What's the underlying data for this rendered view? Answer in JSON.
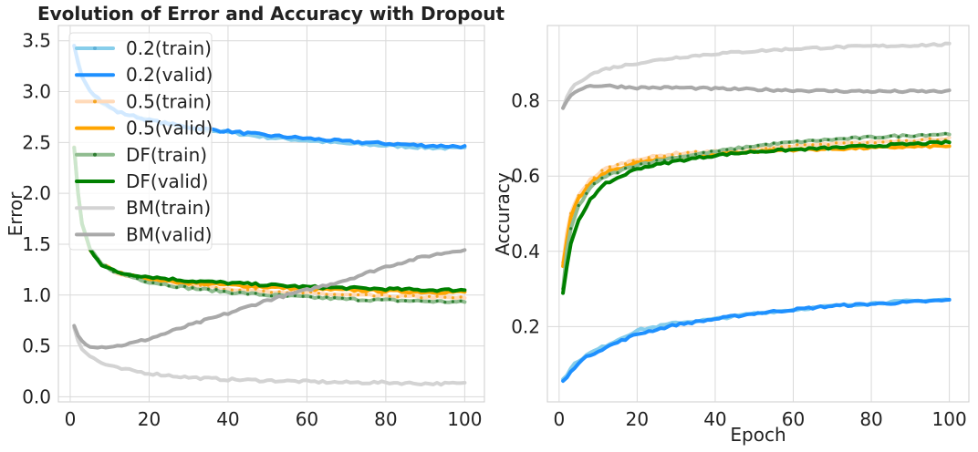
{
  "chart_data": [
    {
      "type": "line",
      "title": "Evolution of Error and Accuracy with Dropout",
      "xlabel": "",
      "ylabel": "Error",
      "xlim": [
        -3,
        105
      ],
      "ylim": [
        -0.05,
        3.65
      ],
      "xticks": [
        0,
        20,
        40,
        60,
        80,
        100
      ],
      "xtick_labels": [
        "0",
        "20",
        "40",
        "60",
        "80",
        "100"
      ],
      "yticks": [
        0.0,
        0.5,
        1.0,
        1.5,
        2.0,
        2.5,
        3.0,
        3.5
      ],
      "ytick_labels": [
        "0.0",
        "0.5",
        "1.0",
        "1.5",
        "2.0",
        "2.5",
        "3.0",
        "3.5"
      ],
      "grid": true,
      "legend_position": "top-left",
      "series": [
        {
          "name": "0.2(train)",
          "color": "#87ceeb",
          "x": [
            1,
            2,
            3,
            5,
            8,
            12,
            20,
            30,
            40,
            50,
            60,
            70,
            80,
            90,
            100
          ],
          "y": [
            3.45,
            3.3,
            3.15,
            3.0,
            2.88,
            2.8,
            2.72,
            2.64,
            2.6,
            2.55,
            2.52,
            2.49,
            2.47,
            2.45,
            2.44
          ]
        },
        {
          "name": "0.2(valid)",
          "color": "#1e90ff",
          "x": [
            1,
            2,
            3,
            5,
            8,
            12,
            20,
            30,
            40,
            50,
            60,
            70,
            80,
            90,
            100
          ],
          "y": [
            3.45,
            3.28,
            3.15,
            3.02,
            2.9,
            2.8,
            2.72,
            2.65,
            2.61,
            2.57,
            2.54,
            2.51,
            2.49,
            2.47,
            2.46
          ]
        },
        {
          "name": "0.5(train)",
          "color": "#ffdab9",
          "x": [
            1,
            2,
            3,
            5,
            8,
            12,
            20,
            30,
            40,
            50,
            60,
            70,
            80,
            90,
            100
          ],
          "y": [
            2.45,
            2.0,
            1.7,
            1.45,
            1.3,
            1.22,
            1.15,
            1.1,
            1.06,
            1.04,
            1.02,
            1.0,
            0.99,
            0.98,
            0.97
          ]
        },
        {
          "name": "0.5(valid)",
          "color": "#ffa500",
          "x": [
            1,
            2,
            3,
            5,
            8,
            12,
            20,
            30,
            40,
            50,
            60,
            70,
            80,
            90,
            100
          ],
          "y": [
            2.45,
            2.0,
            1.7,
            1.45,
            1.3,
            1.22,
            1.15,
            1.12,
            1.1,
            1.08,
            1.06,
            1.05,
            1.04,
            1.03,
            1.03
          ]
        },
        {
          "name": "DF(train)",
          "color": "#8fbc8f",
          "x": [
            1,
            2,
            3,
            5,
            8,
            12,
            20,
            30,
            40,
            50,
            60,
            70,
            80,
            90,
            100
          ],
          "y": [
            2.45,
            2.0,
            1.7,
            1.45,
            1.3,
            1.22,
            1.13,
            1.07,
            1.03,
            1.0,
            0.98,
            0.96,
            0.95,
            0.94,
            0.93
          ]
        },
        {
          "name": "DF(valid)",
          "color": "#008000",
          "x": [
            1,
            2,
            3,
            5,
            8,
            12,
            20,
            30,
            40,
            50,
            60,
            70,
            80,
            90,
            100
          ],
          "y": [
            2.45,
            2.0,
            1.7,
            1.45,
            1.3,
            1.22,
            1.18,
            1.14,
            1.12,
            1.1,
            1.08,
            1.07,
            1.06,
            1.05,
            1.05
          ]
        },
        {
          "name": "BM(train)",
          "color": "#d3d3d3",
          "x": [
            1,
            2,
            3,
            5,
            8,
            12,
            20,
            30,
            40,
            50,
            60,
            70,
            80,
            90,
            100
          ],
          "y": [
            0.68,
            0.55,
            0.47,
            0.4,
            0.33,
            0.28,
            0.23,
            0.19,
            0.17,
            0.16,
            0.15,
            0.14,
            0.14,
            0.13,
            0.13
          ]
        },
        {
          "name": "BM(valid)",
          "color": "#a9a9a9",
          "x": [
            1,
            2,
            3,
            5,
            8,
            12,
            16,
            20,
            30,
            40,
            50,
            60,
            70,
            80,
            90,
            100
          ],
          "y": [
            0.7,
            0.6,
            0.55,
            0.5,
            0.49,
            0.5,
            0.53,
            0.57,
            0.7,
            0.82,
            0.95,
            1.05,
            1.15,
            1.28,
            1.38,
            1.45
          ]
        }
      ]
    },
    {
      "type": "line",
      "title": "",
      "xlabel": "Epoch",
      "ylabel": "Accuracy",
      "xlim": [
        -3,
        105
      ],
      "ylim": [
        0.0,
        1.0
      ],
      "xticks": [
        0,
        20,
        40,
        60,
        80,
        100
      ],
      "xtick_labels": [
        "0",
        "20",
        "40",
        "60",
        "80",
        "100"
      ],
      "yticks": [
        0.2,
        0.4,
        0.6,
        0.8
      ],
      "ytick_labels": [
        "0.2",
        "0.4",
        "0.6",
        "0.8"
      ],
      "grid": true,
      "series": [
        {
          "color": "#87ceeb",
          "x": [
            1,
            2,
            3,
            5,
            8,
            12,
            20,
            30,
            40,
            50,
            60,
            70,
            80,
            90,
            100
          ],
          "y": [
            0.06,
            0.07,
            0.09,
            0.11,
            0.13,
            0.15,
            0.19,
            0.21,
            0.22,
            0.235,
            0.245,
            0.255,
            0.262,
            0.268,
            0.272
          ]
        },
        {
          "color": "#1e90ff",
          "x": [
            1,
            2,
            3,
            5,
            8,
            12,
            20,
            30,
            40,
            50,
            60,
            70,
            80,
            90,
            100
          ],
          "y": [
            0.055,
            0.065,
            0.08,
            0.105,
            0.125,
            0.145,
            0.18,
            0.205,
            0.22,
            0.235,
            0.245,
            0.255,
            0.26,
            0.265,
            0.27
          ]
        },
        {
          "color": "#ffdab9",
          "x": [
            1,
            2,
            3,
            5,
            8,
            12,
            20,
            30,
            40,
            50,
            60,
            70,
            80,
            90,
            100
          ],
          "y": [
            0.37,
            0.45,
            0.5,
            0.55,
            0.59,
            0.62,
            0.645,
            0.66,
            0.665,
            0.675,
            0.68,
            0.685,
            0.69,
            0.695,
            0.7
          ]
        },
        {
          "color": "#ffa500",
          "x": [
            1,
            2,
            3,
            5,
            8,
            12,
            20,
            30,
            40,
            50,
            60,
            70,
            80,
            90,
            100
          ],
          "y": [
            0.36,
            0.43,
            0.49,
            0.54,
            0.58,
            0.61,
            0.635,
            0.65,
            0.66,
            0.665,
            0.67,
            0.672,
            0.675,
            0.678,
            0.68
          ]
        },
        {
          "color": "#8fbc8f",
          "x": [
            1,
            2,
            3,
            5,
            8,
            12,
            20,
            30,
            40,
            50,
            60,
            70,
            80,
            90,
            100
          ],
          "y": [
            0.3,
            0.4,
            0.46,
            0.52,
            0.57,
            0.6,
            0.63,
            0.65,
            0.665,
            0.68,
            0.69,
            0.697,
            0.703,
            0.708,
            0.712
          ]
        },
        {
          "color": "#008000",
          "x": [
            1,
            2,
            3,
            5,
            8,
            12,
            20,
            30,
            40,
            50,
            60,
            70,
            80,
            90,
            100
          ],
          "y": [
            0.29,
            0.36,
            0.42,
            0.48,
            0.54,
            0.58,
            0.62,
            0.64,
            0.655,
            0.665,
            0.67,
            0.675,
            0.68,
            0.685,
            0.69
          ]
        },
        {
          "color": "#d3d3d3",
          "x": [
            1,
            2,
            3,
            5,
            8,
            12,
            20,
            30,
            40,
            50,
            60,
            70,
            80,
            90,
            100
          ],
          "y": [
            0.78,
            0.81,
            0.83,
            0.85,
            0.87,
            0.885,
            0.9,
            0.915,
            0.925,
            0.932,
            0.938,
            0.942,
            0.945,
            0.947,
            0.95
          ]
        },
        {
          "color": "#a9a9a9",
          "x": [
            1,
            2,
            3,
            5,
            8,
            12,
            20,
            30,
            40,
            50,
            60,
            70,
            80,
            90,
            100
          ],
          "y": [
            0.78,
            0.8,
            0.815,
            0.83,
            0.84,
            0.84,
            0.835,
            0.835,
            0.832,
            0.83,
            0.828,
            0.826,
            0.825,
            0.825,
            0.825
          ]
        }
      ]
    }
  ]
}
